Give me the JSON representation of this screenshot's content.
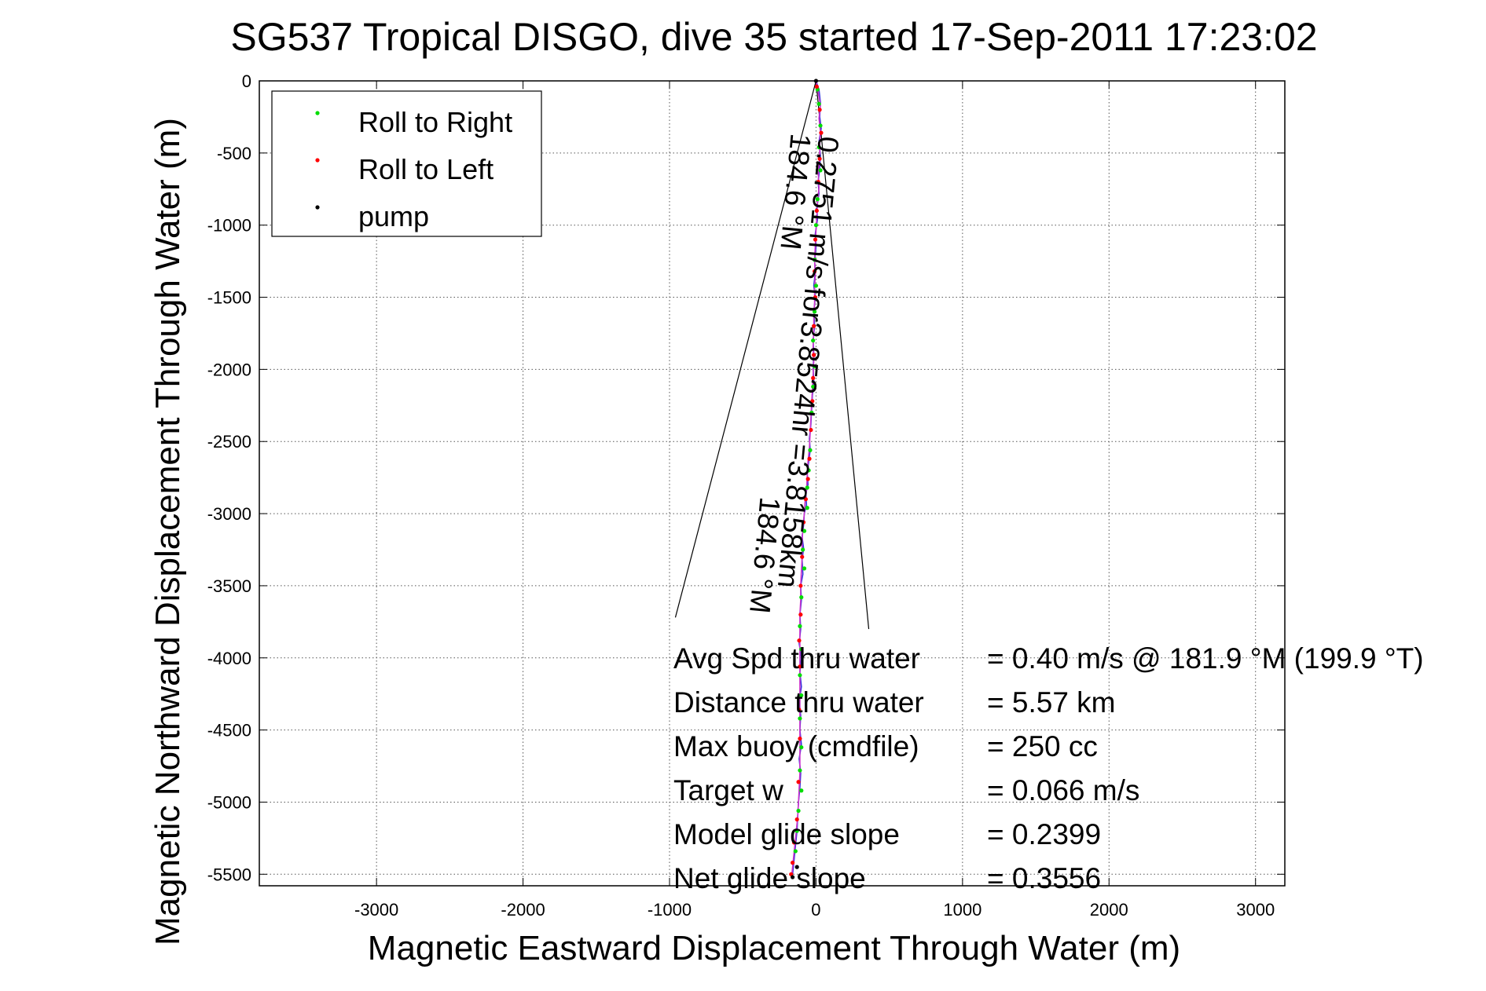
{
  "chart_data": {
    "type": "scatter",
    "title": "SG537 Tropical DISGO, dive 35 started 17-Sep-2011 17:23:02",
    "xlabel": "Magnetic Eastward Displacement Through Water (m)",
    "ylabel": "Magnetic Northward Displacement Through Water (m)",
    "xlim": [
      -3800,
      3200
    ],
    "ylim": [
      -5580,
      0
    ],
    "x_ticks": [
      -3000,
      -2000,
      -1000,
      0,
      1000,
      2000,
      3000
    ],
    "y_ticks": [
      0,
      -500,
      -1000,
      -1500,
      -2000,
      -2500,
      -3000,
      -3500,
      -4000,
      -4500,
      -5000,
      -5500
    ],
    "grid": true,
    "legend_position": "top-left",
    "series": [
      {
        "name": "Roll to Right",
        "color": "#00dd00",
        "marker": "dot",
        "points": [
          [
            10,
            -60
          ],
          [
            20,
            -160
          ],
          [
            30,
            -310
          ],
          [
            20,
            -460
          ],
          [
            30,
            -620
          ],
          [
            10,
            -820
          ],
          [
            0,
            -1000
          ],
          [
            -10,
            -1240
          ],
          [
            0,
            -1420
          ],
          [
            -10,
            -1600
          ],
          [
            -20,
            -1800
          ],
          [
            -10,
            -1980
          ],
          [
            -20,
            -2120
          ],
          [
            -30,
            -2300
          ],
          [
            -40,
            -2560
          ],
          [
            -50,
            -2700
          ],
          [
            -60,
            -2820
          ],
          [
            -60,
            -2960
          ],
          [
            -80,
            -3120
          ],
          [
            -90,
            -3250
          ],
          [
            -80,
            -3380
          ],
          [
            -100,
            -3580
          ],
          [
            -110,
            -3780
          ],
          [
            -100,
            -3940
          ],
          [
            -110,
            -4120
          ],
          [
            -100,
            -4260
          ],
          [
            -110,
            -4420
          ],
          [
            -100,
            -4620
          ],
          [
            -110,
            -4780
          ],
          [
            -100,
            -4920
          ],
          [
            -120,
            -5060
          ],
          [
            -130,
            -5200
          ],
          [
            -140,
            -5340
          ]
        ]
      },
      {
        "name": "Roll to Left",
        "color": "#ff0000",
        "marker": "dot",
        "points": [
          [
            5,
            -40
          ],
          [
            25,
            -200
          ],
          [
            35,
            -360
          ],
          [
            25,
            -540
          ],
          [
            15,
            -700
          ],
          [
            5,
            -900
          ],
          [
            -5,
            -1100
          ],
          [
            -10,
            -1320
          ],
          [
            -5,
            -1500
          ],
          [
            -15,
            -1700
          ],
          [
            -15,
            -1900
          ],
          [
            -20,
            -2060
          ],
          [
            -25,
            -2220
          ],
          [
            -35,
            -2420
          ],
          [
            -45,
            -2620
          ],
          [
            -55,
            -2760
          ],
          [
            -70,
            -2900
          ],
          [
            -85,
            -3060
          ],
          [
            -95,
            -3300
          ],
          [
            -105,
            -3500
          ],
          [
            -105,
            -3700
          ],
          [
            -115,
            -3880
          ],
          [
            -110,
            -4060
          ],
          [
            -115,
            -4360
          ],
          [
            -110,
            -4560
          ],
          [
            -120,
            -4860
          ],
          [
            -130,
            -5120
          ],
          [
            -150,
            -5280
          ],
          [
            -160,
            -5420
          ],
          [
            -170,
            -5500
          ]
        ]
      },
      {
        "name": "pump",
        "color": "#000000",
        "marker": "dot",
        "points": [
          [
            0,
            0
          ],
          [
            -130,
            -5450
          ],
          [
            -160,
            -5520
          ]
        ]
      }
    ],
    "track": {
      "color": "#3333dd",
      "points": [
        [
          0,
          0
        ],
        [
          20,
          -60
        ],
        [
          30,
          -150
        ],
        [
          25,
          -250
        ],
        [
          35,
          -330
        ],
        [
          20,
          -420
        ],
        [
          30,
          -520
        ],
        [
          25,
          -600
        ],
        [
          15,
          -700
        ],
        [
          20,
          -780
        ],
        [
          5,
          -880
        ],
        [
          10,
          -960
        ],
        [
          -5,
          -1060
        ],
        [
          0,
          -1150
        ],
        [
          -10,
          -1250
        ],
        [
          -5,
          -1330
        ],
        [
          -15,
          -1420
        ],
        [
          -5,
          -1500
        ],
        [
          -15,
          -1600
        ],
        [
          -10,
          -1700
        ],
        [
          -20,
          -1800
        ],
        [
          -15,
          -1900
        ],
        [
          -20,
          -2000
        ],
        [
          -15,
          -2080
        ],
        [
          -25,
          -2180
        ],
        [
          -30,
          -2280
        ],
        [
          -35,
          -2380
        ],
        [
          -45,
          -2480
        ],
        [
          -40,
          -2560
        ],
        [
          -50,
          -2640
        ],
        [
          -60,
          -2720
        ],
        [
          -55,
          -2800
        ],
        [
          -70,
          -2860
        ],
        [
          -65,
          -2940
        ],
        [
          -80,
          -3000
        ],
        [
          -85,
          -3080
        ],
        [
          -95,
          -3160
        ],
        [
          -85,
          -3240
        ],
        [
          -95,
          -3320
        ],
        [
          -90,
          -3420
        ],
        [
          -105,
          -3500
        ],
        [
          -100,
          -3600
        ],
        [
          -110,
          -3700
        ],
        [
          -105,
          -3800
        ],
        [
          -115,
          -3900
        ],
        [
          -100,
          -4000
        ],
        [
          -110,
          -4100
        ],
        [
          -100,
          -4200
        ],
        [
          -115,
          -4300
        ],
        [
          -105,
          -4400
        ],
        [
          -110,
          -4500
        ],
        [
          -100,
          -4600
        ],
        [
          -115,
          -4700
        ],
        [
          -105,
          -4800
        ],
        [
          -110,
          -4900
        ],
        [
          -120,
          -5000
        ],
        [
          -125,
          -5100
        ],
        [
          -130,
          -5200
        ],
        [
          -140,
          -5300
        ],
        [
          -150,
          -5400
        ],
        [
          -160,
          -5500
        ]
      ]
    },
    "track2": {
      "color": "#cc33cc",
      "points": [
        [
          0,
          0
        ],
        [
          15,
          -80
        ],
        [
          30,
          -170
        ],
        [
          20,
          -260
        ],
        [
          30,
          -350
        ],
        [
          25,
          -440
        ],
        [
          25,
          -540
        ],
        [
          15,
          -640
        ],
        [
          20,
          -740
        ],
        [
          10,
          -840
        ],
        [
          5,
          -940
        ],
        [
          0,
          -1040
        ],
        [
          -5,
          -1140
        ],
        [
          -10,
          -1240
        ],
        [
          -5,
          -1340
        ],
        [
          -10,
          -1440
        ],
        [
          -10,
          -1540
        ],
        [
          -15,
          -1640
        ],
        [
          -15,
          -1740
        ],
        [
          -20,
          -1840
        ],
        [
          -15,
          -1940
        ],
        [
          -20,
          -2040
        ],
        [
          -25,
          -2140
        ],
        [
          -30,
          -2240
        ],
        [
          -35,
          -2340
        ],
        [
          -40,
          -2440
        ],
        [
          -45,
          -2540
        ],
        [
          -55,
          -2640
        ],
        [
          -60,
          -2740
        ],
        [
          -65,
          -2840
        ],
        [
          -75,
          -2920
        ],
        [
          -80,
          -3000
        ],
        [
          -90,
          -3100
        ],
        [
          -95,
          -3200
        ],
        [
          -95,
          -3300
        ],
        [
          -100,
          -3400
        ],
        [
          -105,
          -3500
        ],
        [
          -105,
          -3600
        ],
        [
          -110,
          -3700
        ],
        [
          -110,
          -3800
        ],
        [
          -110,
          -3900
        ],
        [
          -110,
          -4000
        ],
        [
          -110,
          -4100
        ],
        [
          -110,
          -4200
        ],
        [
          -110,
          -4300
        ],
        [
          -110,
          -4400
        ],
        [
          -110,
          -4500
        ],
        [
          -110,
          -4600
        ],
        [
          -110,
          -4700
        ],
        [
          -110,
          -4800
        ],
        [
          -115,
          -4900
        ],
        [
          -120,
          -5000
        ],
        [
          -125,
          -5100
        ],
        [
          -135,
          -5200
        ],
        [
          -145,
          -5300
        ],
        [
          -155,
          -5400
        ],
        [
          -165,
          -5500
        ]
      ]
    },
    "wedge_lines": [
      [
        [
          0,
          0
        ],
        [
          -960,
          -3720
        ]
      ],
      [
        [
          0,
          0
        ],
        [
          360,
          -3800
        ]
      ]
    ],
    "annotations": [
      {
        "text": "0.2751 m/s for3.8524hr =3.8158km",
        "x": 20,
        "y": -380,
        "rotation": 95.2
      },
      {
        "text": "184.6 °M",
        "x": -170,
        "y": -360,
        "rotation": 95.2
      },
      {
        "text": "184.6 °M",
        "x": -380,
        "y": -2880,
        "rotation": 95.2
      }
    ],
    "stats": [
      {
        "label": "Avg Spd thru water",
        "value": "=  0.40 m/s @ 181.9 °M (199.9 °T)"
      },
      {
        "label": "Distance thru water",
        "value": "=  5.57 km"
      },
      {
        "label": "Max buoy (cmdfile)",
        "value": "= 250 cc"
      },
      {
        "label": "Target w",
        "value": "= 0.066 m/s"
      },
      {
        "label": "Model glide slope",
        "value": "= 0.2399"
      },
      {
        "label": "Net glide slope",
        "value": "= 0.3556"
      }
    ]
  }
}
